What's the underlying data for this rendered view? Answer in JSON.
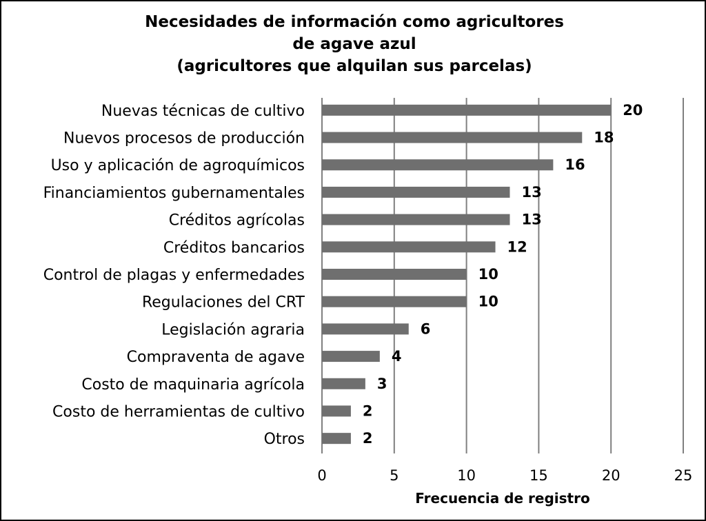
{
  "chart_data": {
    "type": "bar",
    "orientation": "horizontal",
    "title_lines": [
      "Necesidades de información como agricultores",
      "de agave azul",
      "(agricultores que alquilan sus parcelas)"
    ],
    "xlabel": "Frecuencia de registro",
    "ylabel": "",
    "xlim": [
      0,
      25
    ],
    "xticks": [
      "0",
      "5",
      "10",
      "15",
      "20",
      "25"
    ],
    "gridlines": "vertical",
    "legend": "none",
    "bar_color": "#6f6f6f",
    "grid_color": "#7f7f7f",
    "categories": [
      "Nuevas técnicas de cultivo",
      "Nuevos procesos de producción",
      "Uso y aplicación de agroquímicos",
      "Financiamientos gubernamentales",
      "Créditos agrícolas",
      "Créditos bancarios",
      "Control de plagas y enfermedades",
      "Regulaciones del CRT",
      "Legislación agraria",
      "Compraventa de agave",
      "Costo de maquinaria agrícola",
      "Costo de herramientas de cultivo",
      "Otros"
    ],
    "values": [
      20,
      18,
      16,
      13,
      13,
      12,
      10,
      10,
      6,
      4,
      3,
      2,
      2
    ]
  }
}
